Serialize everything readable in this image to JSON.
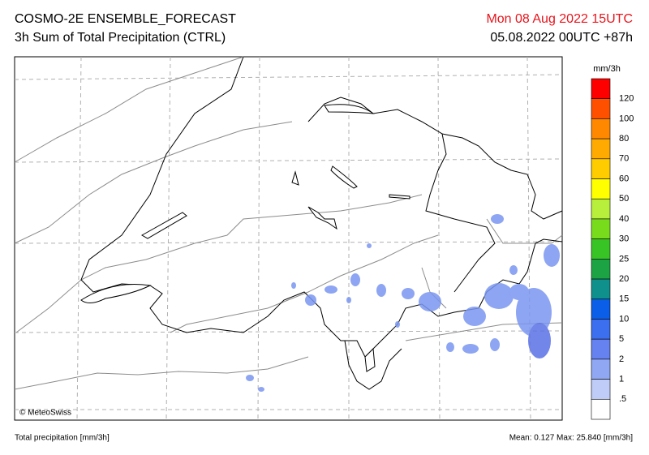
{
  "header": {
    "title": "COSMO-2E ENSEMBLE_FORECAST",
    "subtitle": "3h Sum of Total Precipitation (CTRL)",
    "valid_time": "Mon 08 Aug 2022 15UTC",
    "run_time": "05.08.2022 00UTC +87h"
  },
  "map": {
    "credit": "© MeteoSwiss"
  },
  "legend": {
    "unit": "mm/3h",
    "labels": [
      "120",
      "100",
      "80",
      "70",
      "60",
      "50",
      "40",
      "30",
      "25",
      "20",
      "15",
      "10",
      "5",
      "2",
      "1",
      ".5"
    ],
    "colors": [
      "#ff0000",
      "#ff5000",
      "#ff8800",
      "#ffaa00",
      "#ffcc00",
      "#ffff00",
      "#b8ee3c",
      "#78dc1c",
      "#38c424",
      "#1ca444",
      "#10908c",
      "#0a5ee8",
      "#3c6ef0",
      "#6682f0",
      "#90a8f4",
      "#c0ccf8",
      "#ffffff"
    ]
  },
  "footer": {
    "left": "Total precipitation [mm/3h]",
    "right": "Mean:  0.127 Max: 25.840 [mm/3h]"
  }
}
